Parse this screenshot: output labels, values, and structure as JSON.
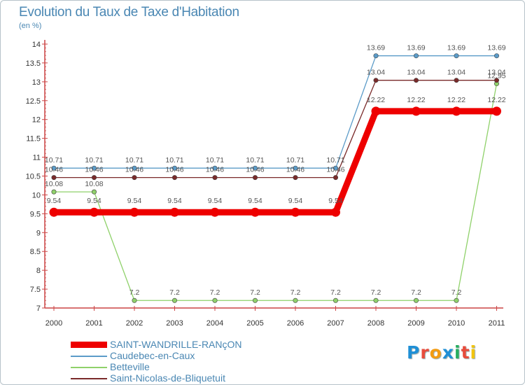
{
  "title": "Evolution du Taux de Taxe d'Habitation",
  "subtitle": "(en %)",
  "logo": {
    "text": "Proxiti",
    "colors": [
      "#1f8fd6",
      "#e74c3c",
      "#f39c12",
      "#1f8fd6",
      "#27ae60",
      "#e74c3c",
      "#f1c40f"
    ]
  },
  "chart_data": {
    "type": "line",
    "title": "Evolution du Taux de Taxe d'Habitation",
    "ylabel": "(en %)",
    "xlabel": "",
    "categories": [
      "2000",
      "2001",
      "2002",
      "2003",
      "2004",
      "2005",
      "2006",
      "2007",
      "2008",
      "2009",
      "2010",
      "2011"
    ],
    "ylim": [
      7,
      14
    ],
    "yticks": [
      7,
      7.5,
      8,
      8.5,
      9,
      9.5,
      10,
      10.5,
      11,
      11.5,
      12,
      12.5,
      13,
      13.5,
      14
    ],
    "grid": false,
    "legend": "bottom-left",
    "series": [
      {
        "name": "SAINT-WANDRILLE-RANçON",
        "color": "#ee0000",
        "emphasis": true,
        "values": [
          9.54,
          9.54,
          9.54,
          9.54,
          9.54,
          9.54,
          9.54,
          9.54,
          12.22,
          12.22,
          12.22,
          12.22
        ],
        "labels": [
          "9.54",
          "9.54",
          "9.54",
          "9.54",
          "9.54",
          "9.54",
          "9.54",
          "9.54",
          "12.22",
          "12.22",
          "12.22",
          "12.22"
        ]
      },
      {
        "name": "Caudebec-en-Caux",
        "color": "#5b9bc8",
        "emphasis": false,
        "values": [
          10.71,
          10.71,
          10.71,
          10.71,
          10.71,
          10.71,
          10.71,
          10.71,
          13.69,
          13.69,
          13.69,
          13.69
        ],
        "labels": [
          "10.71",
          "10.71",
          "10.71",
          "10.71",
          "10.71",
          "10.71",
          "10.71",
          "10.71",
          "13.69",
          "13.69",
          "13.69",
          "13.69"
        ]
      },
      {
        "name": "Betteville",
        "color": "#8fd16a",
        "emphasis": false,
        "values": [
          10.08,
          10.08,
          7.2,
          7.2,
          7.2,
          7.2,
          7.2,
          7.2,
          7.2,
          7.2,
          7.2,
          12.95
        ],
        "labels": [
          "10.08",
          "10.08",
          "7.2",
          "7.2",
          "7.2",
          "7.2",
          "7.2",
          "7.2",
          "7.2",
          "7.2",
          "7.2",
          "12.95"
        ]
      },
      {
        "name": "Saint-Nicolas-de-Bliquetuit",
        "color": "#7a2a2a",
        "emphasis": false,
        "values": [
          10.46,
          10.46,
          10.46,
          10.46,
          10.46,
          10.46,
          10.46,
          10.46,
          13.04,
          13.04,
          13.04,
          13.04
        ],
        "labels": [
          "10.46",
          "10.46",
          "10.46",
          "10.46",
          "10.46",
          "10.46",
          "10.46",
          "10.46",
          "13.04",
          "13.04",
          "13.04",
          "13.04"
        ]
      }
    ]
  }
}
